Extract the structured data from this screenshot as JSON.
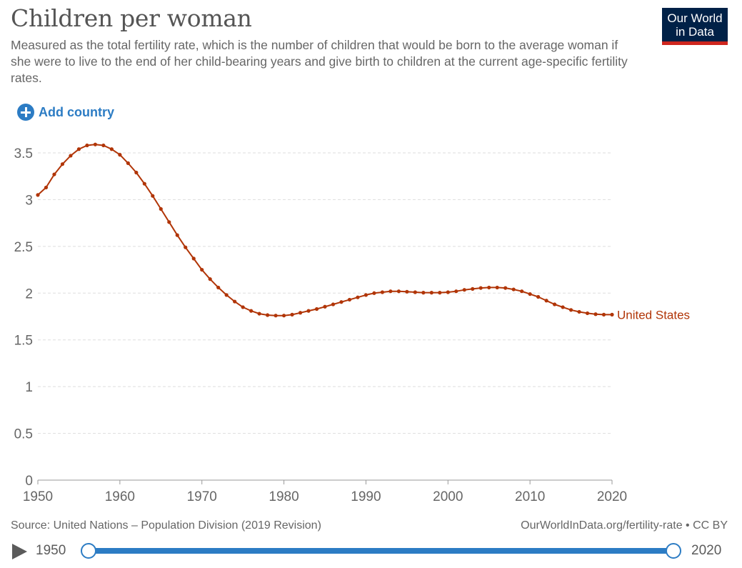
{
  "header": {
    "title": "Children per woman",
    "subtitle": "Measured as the total fertility rate, which is the number of children that would be born to the average woman if she were to live to the end of her child-bearing years and give birth to children at the current age-specific fertility rates.",
    "logo_line1": "Our World",
    "logo_line2": "in Data"
  },
  "controls": {
    "add_country_label": "Add country"
  },
  "footer": {
    "source": "Source: United Nations – Population Division (2019 Revision)",
    "license": "OurWorldInData.org/fertility-rate • CC BY"
  },
  "timeline": {
    "start_label": "1950",
    "end_label": "2020"
  },
  "colors": {
    "series": "#b13507",
    "accent": "#2c7cc4",
    "logo_bg": "#002147",
    "logo_red": "#ce261e",
    "grid": "#dddddd"
  },
  "chart_data": {
    "type": "line",
    "title": "Children per woman",
    "xlim": [
      1950,
      2020
    ],
    "ylim": [
      0,
      3.5
    ],
    "x_ticks": [
      1950,
      1960,
      1970,
      1980,
      1990,
      2000,
      2010,
      2020
    ],
    "y_ticks": [
      0,
      0.5,
      1,
      1.5,
      2,
      2.5,
      3,
      3.5
    ],
    "grid": "horizontal dashed",
    "series": [
      {
        "name": "United States",
        "x": [
          1950,
          1951,
          1952,
          1953,
          1954,
          1955,
          1956,
          1957,
          1958,
          1959,
          1960,
          1961,
          1962,
          1963,
          1964,
          1965,
          1966,
          1967,
          1968,
          1969,
          1970,
          1971,
          1972,
          1973,
          1974,
          1975,
          1976,
          1977,
          1978,
          1979,
          1980,
          1981,
          1982,
          1983,
          1984,
          1985,
          1986,
          1987,
          1988,
          1989,
          1990,
          1991,
          1992,
          1993,
          1994,
          1995,
          1996,
          1997,
          1998,
          1999,
          2000,
          2001,
          2002,
          2003,
          2004,
          2005,
          2006,
          2007,
          2008,
          2009,
          2010,
          2011,
          2012,
          2013,
          2014,
          2015,
          2016,
          2017,
          2018,
          2019,
          2020
        ],
        "y": [
          3.05,
          3.13,
          3.27,
          3.38,
          3.47,
          3.54,
          3.58,
          3.59,
          3.58,
          3.54,
          3.48,
          3.39,
          3.29,
          3.17,
          3.04,
          2.9,
          2.76,
          2.62,
          2.49,
          2.37,
          2.25,
          2.15,
          2.06,
          1.98,
          1.91,
          1.85,
          1.81,
          1.78,
          1.765,
          1.76,
          1.76,
          1.77,
          1.79,
          1.81,
          1.83,
          1.855,
          1.88,
          1.905,
          1.93,
          1.955,
          1.98,
          2.0,
          2.01,
          2.02,
          2.02,
          2.015,
          2.01,
          2.005,
          2.005,
          2.005,
          2.01,
          2.02,
          2.035,
          2.045,
          2.055,
          2.06,
          2.06,
          2.055,
          2.04,
          2.02,
          1.99,
          1.96,
          1.92,
          1.88,
          1.85,
          1.82,
          1.8,
          1.785,
          1.775,
          1.77,
          1.77
        ]
      }
    ]
  }
}
